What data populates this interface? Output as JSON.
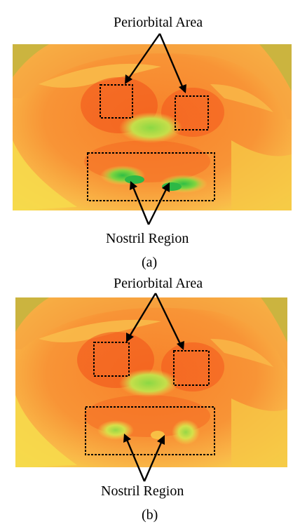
{
  "figure": {
    "panels": [
      {
        "id": "a",
        "caption": "(a)",
        "periorbital_label": "Periorbital Area",
        "nostril_label": "Nostril Region"
      },
      {
        "id": "b",
        "caption": "(b)",
        "periorbital_label": "Periorbital Area",
        "nostril_label": "Nostril Region"
      }
    ]
  },
  "colors": {
    "hot": "#f3501a",
    "warm": "#f77a25",
    "mild": "#f9a43b",
    "yellow": "#f6d84a",
    "green": "#7cd23c",
    "box": "#000000"
  }
}
